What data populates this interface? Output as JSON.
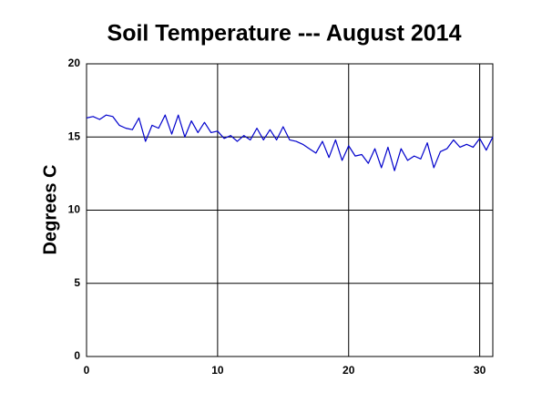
{
  "chart_data": {
    "type": "line",
    "title": "Soil Temperature --- August 2014",
    "ylabel": "Degrees C",
    "x": [
      0,
      0.5,
      1,
      1.5,
      2,
      2.5,
      3,
      3.5,
      4,
      4.5,
      5,
      5.5,
      6,
      6.5,
      7,
      7.5,
      8,
      8.5,
      9,
      9.5,
      10,
      10.5,
      11,
      11.5,
      12,
      12.5,
      13,
      13.5,
      14,
      14.5,
      15,
      15.5,
      16,
      16.5,
      17,
      17.5,
      18,
      18.5,
      19,
      19.5,
      20,
      20.5,
      21,
      21.5,
      22,
      22.5,
      23,
      23.5,
      24,
      24.5,
      25,
      25.5,
      26,
      26.5,
      27,
      27.5,
      28,
      28.5,
      29,
      29.5,
      30,
      30.5,
      31
    ],
    "series": [
      {
        "name": "Soil Temperature",
        "color": "#0000cc",
        "values": [
          16.3,
          16.4,
          16.2,
          16.5,
          16.4,
          15.8,
          15.6,
          15.5,
          16.3,
          14.7,
          15.8,
          15.6,
          16.5,
          15.2,
          16.5,
          15.0,
          16.1,
          15.3,
          16.0,
          15.3,
          15.4,
          14.9,
          15.1,
          14.7,
          15.1,
          14.8,
          15.6,
          14.8,
          15.5,
          14.8,
          15.7,
          14.8,
          14.7,
          14.5,
          14.2,
          13.9,
          14.7,
          13.6,
          14.8,
          13.4,
          14.4,
          13.7,
          13.8,
          13.2,
          14.2,
          12.9,
          14.3,
          12.7,
          14.2,
          13.4,
          13.7,
          13.5,
          14.6,
          12.9,
          14.0,
          14.2,
          14.8,
          14.3,
          14.5,
          14.3,
          14.9,
          14.1,
          15.0
        ]
      }
    ],
    "xlim": [
      0,
      31
    ],
    "xticks": [
      0,
      10,
      20,
      30
    ],
    "ylim": [
      0,
      20
    ],
    "yticks": [
      0,
      5,
      10,
      15,
      20
    ],
    "grid": true
  }
}
